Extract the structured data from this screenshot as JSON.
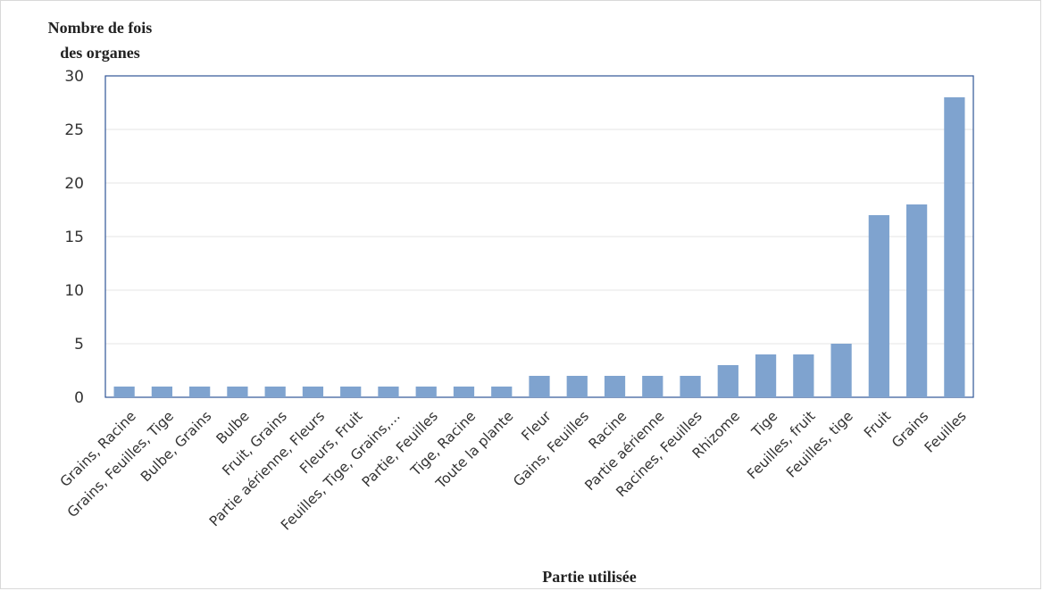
{
  "chart_data": {
    "type": "bar",
    "ylabel_line1": "Nombre de fois",
    "ylabel_line2": "des organes",
    "xlabel": "Partie utilisée",
    "ylim": [
      0,
      30
    ],
    "yticks": [
      0,
      5,
      10,
      15,
      20,
      25,
      30
    ],
    "grid": true,
    "bar_color": "#7fa3cf",
    "categories": [
      "Grains, Racine",
      "Grains, Feuilles, Tige",
      "Bulbe, Grains",
      "Bulbe",
      "Fruit, Grains",
      "Partie aérienne, Fleurs",
      "Fleurs, Fruit",
      "Feuilles, Tige, Grains,…",
      "Partie, Feuilles",
      "Tige, Racine",
      "Toute la plante",
      "Fleur",
      "Gains, Feuilles",
      "Racine",
      "Partie aérienne",
      "Racines, Feuilles",
      "Rhizome",
      "Tige",
      "Feuilles, fruit",
      "Feuilles, tige",
      "Fruit",
      "Grains",
      "Feuilles"
    ],
    "values": [
      1,
      1,
      1,
      1,
      1,
      1,
      1,
      1,
      1,
      1,
      1,
      2,
      2,
      2,
      2,
      2,
      3,
      4,
      4,
      5,
      17,
      18,
      28
    ]
  }
}
